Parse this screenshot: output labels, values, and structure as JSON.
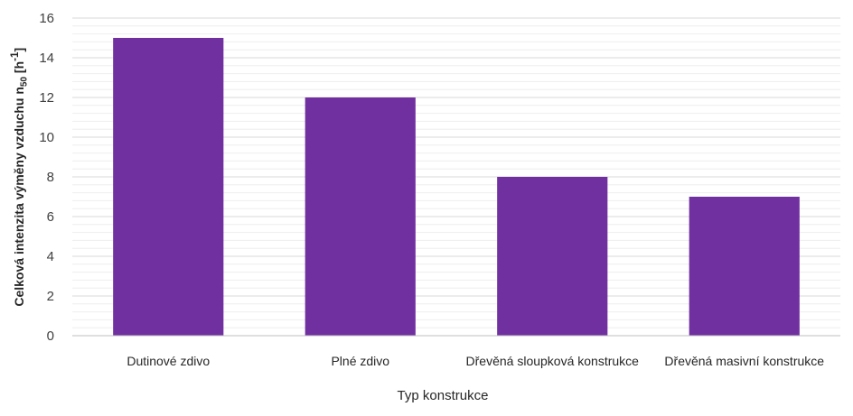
{
  "chart_data": {
    "type": "bar",
    "categories": [
      "Dutinové zdivo",
      "Plné zdivo",
      "Dřevěná sloupková konstrukce",
      "Dřevěná masivní konstrukce"
    ],
    "values": [
      15,
      12,
      8,
      7
    ],
    "xlabel": "Typ konstrukce",
    "ylabel": {
      "prefix": "Celková intenzita výměny vzduchu n",
      "subscript": "50",
      "suffix": " [h",
      "superscript": "-1",
      "close": "]"
    },
    "ylim": [
      0,
      16
    ],
    "yticks": [
      0,
      2,
      4,
      6,
      8,
      10,
      12,
      14,
      16
    ],
    "grid": true,
    "minor_grid": true,
    "bar_color": "#7030a0",
    "grid_color": "#d9d9d9",
    "minor_grid_color": "#eeeeee"
  }
}
